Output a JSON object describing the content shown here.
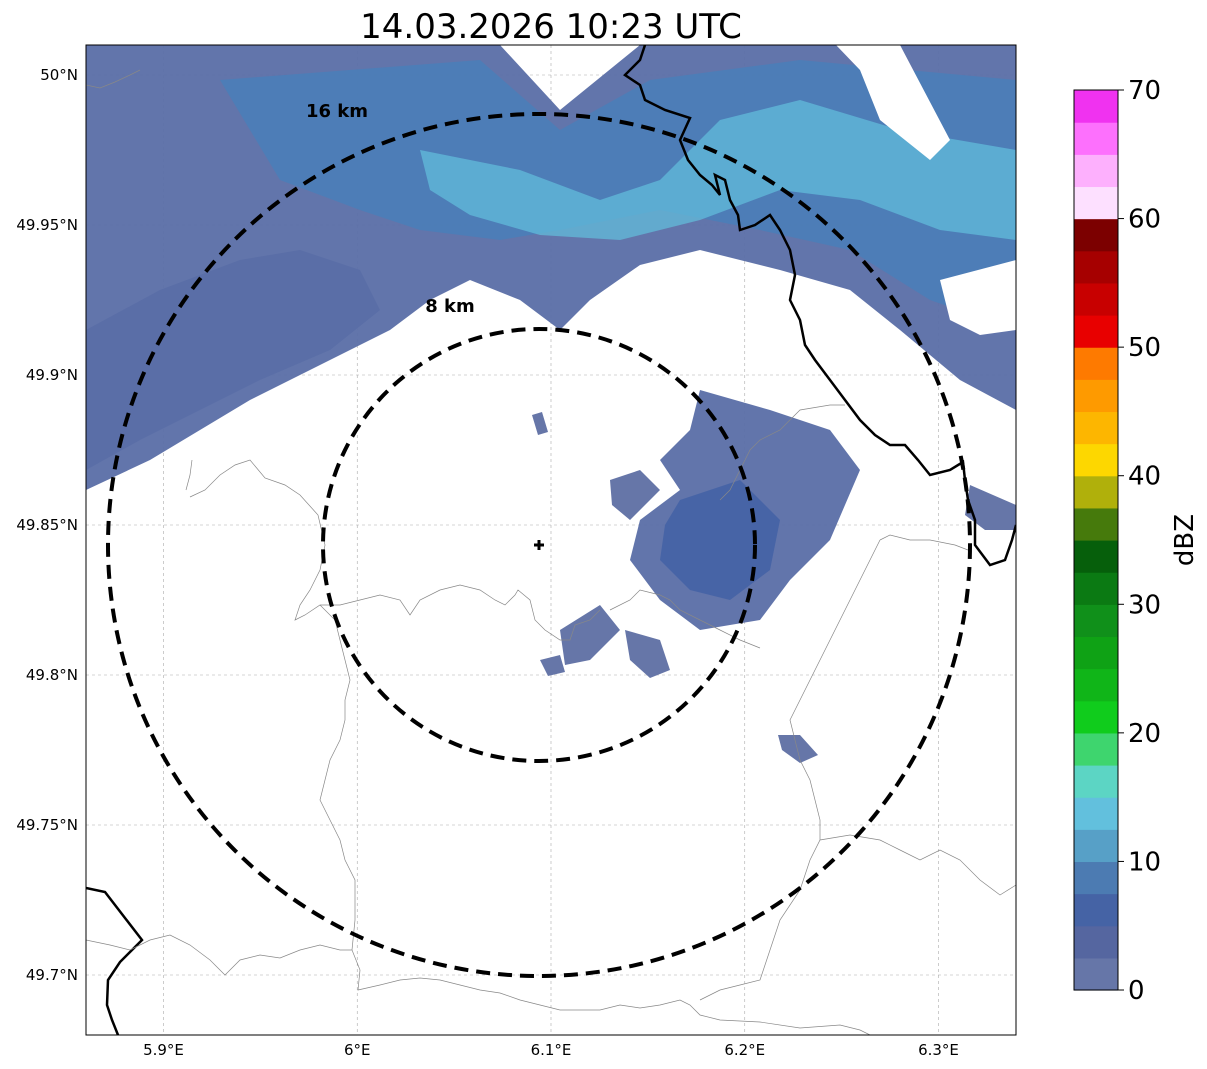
{
  "title": "14.03.2026 10:23 UTC",
  "map": {
    "x_ticks": [
      "5.9°E",
      "6°E",
      "6.1°E",
      "6.2°E",
      "6.3°E"
    ],
    "y_ticks": [
      "50°N",
      "49.95°N",
      "49.9°N",
      "49.85°N",
      "49.8°N",
      "49.75°N",
      "49.7°N"
    ],
    "x_tick_values": [
      5.9,
      6.0,
      6.1,
      6.2,
      6.3
    ],
    "y_tick_values": [
      50.0,
      49.95,
      49.9,
      49.85,
      49.8,
      49.75,
      49.7
    ],
    "lon_range": [
      5.86,
      6.34
    ],
    "lat_range": [
      49.68,
      50.01
    ],
    "radar_center": {
      "lon": 6.095,
      "lat": 49.843
    },
    "rings": [
      {
        "label": "8 km",
        "radius_km": 8
      },
      {
        "label": "16 km",
        "radius_km": 16
      }
    ],
    "gridlines": true
  },
  "colorbar": {
    "label": "dBZ",
    "min": 0,
    "max": 70,
    "ticks": [
      "0",
      "10",
      "20",
      "30",
      "40",
      "50",
      "60",
      "70"
    ],
    "colors": [
      "#6676a8",
      "#5566a0",
      "#4563a5",
      "#4c7bb2",
      "#57a0c7",
      "#62c0dd",
      "#5cd5c4",
      "#3ed56e",
      "#10cc1c",
      "#10b518",
      "#0fa215",
      "#10901a",
      "#0b7a13",
      "#065f0b",
      "#467a0c",
      "#b0b00b",
      "#fdd700",
      "#fdb600",
      "#fe9a00",
      "#fe7a00",
      "#e80000",
      "#c80000",
      "#a60000",
      "#7c0000",
      "#fde0ff",
      "#fdb0fd",
      "#fd70fd",
      "#f032f0"
    ]
  }
}
